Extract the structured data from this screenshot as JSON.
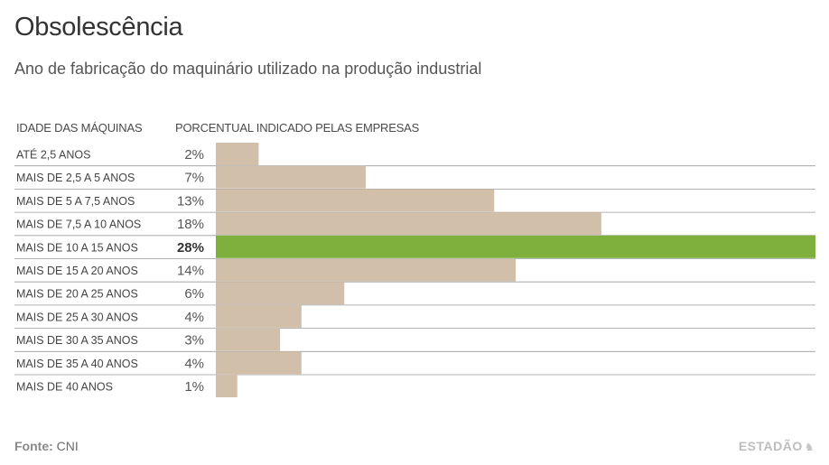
{
  "header": {
    "title": "Obsolescência",
    "subtitle": "Ano de fabricação do maquinário utilizado na produção industrial"
  },
  "columns": {
    "category_header": "IDADE DAS MÁQUINAS",
    "value_header": "PORCENTUAL INDICADO PELAS EMPRESAS"
  },
  "chart_data": {
    "type": "bar",
    "orientation": "horizontal",
    "categories": [
      "ATÉ 2,5 ANOS",
      "MAIS DE 2,5 A 5 ANOS",
      "MAIS DE 5 A 7,5 ANOS",
      "MAIS DE 7,5 A 10 ANOS",
      "MAIS DE 10 A 15 ANOS",
      "MAIS DE 15 A 20 ANOS",
      "MAIS DE 20 A 25 ANOS",
      "MAIS DE 25 A 30 ANOS",
      "MAIS DE 30 A 35 ANOS",
      "MAIS DE 35 A 40 ANOS",
      "MAIS DE 40 ANOS"
    ],
    "values": [
      2,
      7,
      13,
      18,
      28,
      14,
      6,
      4,
      3,
      4,
      1
    ],
    "value_labels": [
      "2%",
      "7%",
      "13%",
      "18%",
      "28%",
      "14%",
      "6%",
      "4%",
      "3%",
      "4%",
      "1%"
    ],
    "highlight_index": 4,
    "xlim": [
      0,
      28
    ],
    "grid": false,
    "colors": {
      "bar": "#d2bfa9",
      "highlight": "#7fb03d",
      "divider": "#9a9a9a"
    }
  },
  "footer": {
    "source_label": "Fonte:",
    "source_value": "CNI",
    "brand": "ESTADÃO",
    "brand_icon": "horse-logo-icon"
  }
}
